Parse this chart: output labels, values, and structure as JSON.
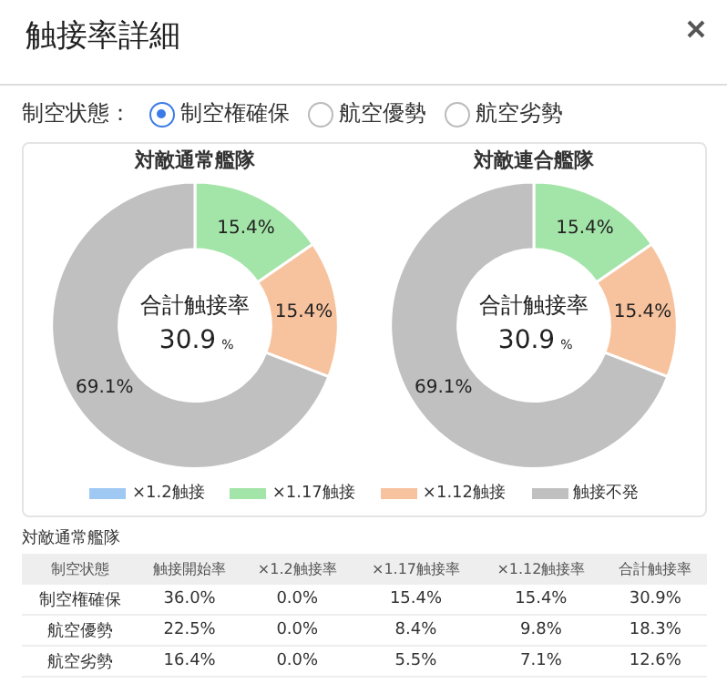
{
  "chart_data": [
    {
      "type": "other",
      "title": "触接率詳細",
      "annotations": [
        "制空状態：",
        "制空権確保",
        "航空優勢",
        "航空劣勢"
      ]
    },
    {
      "type": "donut",
      "title": "対敵通常艦隊",
      "categories": [
        "×1.2触接",
        "×1.17触接",
        "×1.12触接",
        "触接不発"
      ],
      "values": [
        0,
        15.4,
        15.4,
        69.1
      ],
      "colors": [
        "#9fc8f3",
        "#a3e4a8",
        "#f7c29e",
        "#c0c0c0"
      ],
      "value_labels": [
        null,
        "15.4%",
        "15.4%",
        "69.1%"
      ],
      "annotations": [
        "合計触接率",
        "30.9",
        "%"
      ],
      "legend": "bottom"
    },
    {
      "type": "donut",
      "title": "対敵連合艦隊",
      "values": [
        0,
        15.4,
        15.4,
        69.1
      ],
      "colors": [
        "#9fc8f3",
        "#a3e4a8",
        "#f7c29e",
        "#c0c0c0"
      ],
      "value_labels": [
        null,
        "15.4%",
        "15.4%",
        "69.1%"
      ],
      "annotations": [
        "合計触接率",
        "30.9",
        "%"
      ]
    },
    {
      "type": "other",
      "title": "対敵通常艦隊",
      "categories": [
        "制空状態",
        "触接開始率",
        "×1.2触接率",
        "×1.17触接率",
        "×1.12触接率",
        "合計触接率"
      ],
      "y_categories": [
        "制空権確保",
        "航空優勢",
        "航空劣勢"
      ],
      "cell_labels": [
        [
          "36.0%",
          "0.0%",
          "15.4%",
          "15.4%",
          "30.9%"
        ],
        [
          "22.5%",
          "0.0%",
          "8.4%",
          "9.8%",
          "18.3%"
        ],
        [
          "16.4%",
          "0.0%",
          "5.5%",
          "7.1%",
          "12.6%"
        ]
      ]
    }
  ]
}
